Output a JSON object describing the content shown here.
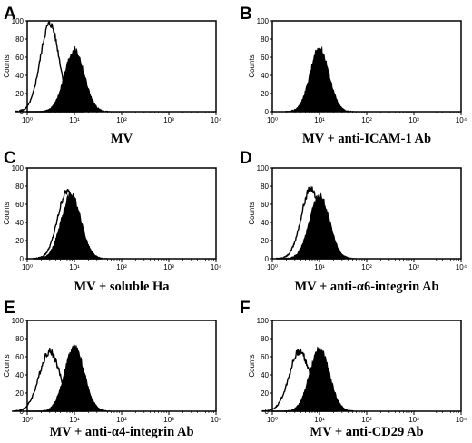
{
  "chart_data": [
    {
      "type": "area",
      "panel": "A",
      "caption": "MV",
      "ylabel": "Counts",
      "x_scale": "log",
      "xlim": [
        1,
        10000
      ],
      "ylim": [
        0,
        100
      ],
      "yticks": [
        "0",
        "20",
        "40",
        "60",
        "80",
        "100"
      ],
      "xticks": [
        "10⁰",
        "10¹",
        "10²",
        "10³",
        "10⁴"
      ],
      "series": [
        {
          "style": "open-outline",
          "peak_x": 3,
          "peak_y": 97,
          "width_decades": 0.2
        },
        {
          "style": "filled-black",
          "peak_x": 10,
          "peak_y": 68,
          "width_decades": 0.21
        }
      ]
    },
    {
      "type": "area",
      "panel": "B",
      "caption": "MV + anti-ICAM-1 Ab",
      "ylabel": "Counts",
      "x_scale": "log",
      "xlim": [
        1,
        10000
      ],
      "ylim": [
        0,
        100
      ],
      "yticks": [
        "0",
        "20",
        "40",
        "60",
        "80",
        "100"
      ],
      "xticks": [
        "10⁰",
        "10¹",
        "10²",
        "10³",
        "10⁴"
      ],
      "series": [
        {
          "style": "filled-black",
          "peak_x": 10,
          "peak_y": 70,
          "width_decades": 0.2
        }
      ]
    },
    {
      "type": "area",
      "panel": "C",
      "caption": "MV + soluble Ha",
      "ylabel": "Counts",
      "x_scale": "log",
      "xlim": [
        1,
        10000
      ],
      "ylim": [
        0,
        100
      ],
      "yticks": [
        "0",
        "20",
        "40",
        "60",
        "80",
        "100"
      ],
      "xticks": [
        "10⁰",
        "10¹",
        "10²",
        "10³",
        "10⁴"
      ],
      "series": [
        {
          "style": "open-outline",
          "peak_x": 7,
          "peak_y": 74,
          "width_decades": 0.2
        },
        {
          "style": "filled-black",
          "peak_x": 8.5,
          "peak_y": 70,
          "width_decades": 0.21
        }
      ]
    },
    {
      "type": "area",
      "panel": "D",
      "caption": "MV + anti-α6-integrin Ab",
      "ylabel": "Counts",
      "x_scale": "log",
      "xlim": [
        1,
        10000
      ],
      "ylim": [
        0,
        100
      ],
      "yticks": [
        "0",
        "20",
        "40",
        "60",
        "80",
        "100"
      ],
      "xticks": [
        "10⁰",
        "10¹",
        "10²",
        "10³",
        "10⁴"
      ],
      "series": [
        {
          "style": "open-outline",
          "peak_x": 6.5,
          "peak_y": 77,
          "width_decades": 0.2
        },
        {
          "style": "filled-black",
          "peak_x": 10,
          "peak_y": 70,
          "width_decades": 0.21
        }
      ]
    },
    {
      "type": "area",
      "panel": "E",
      "caption": "MV + anti-α4-integrin Ab",
      "ylabel": "Counts",
      "x_scale": "log",
      "xlim": [
        1,
        10000
      ],
      "ylim": [
        0,
        100
      ],
      "yticks": [
        "0",
        "20",
        "40",
        "60",
        "80",
        "100"
      ],
      "xticks": [
        "10⁰",
        "10¹",
        "10²",
        "10³",
        "10⁴"
      ],
      "series": [
        {
          "style": "open-outline",
          "peak_x": 3,
          "peak_y": 66,
          "width_decades": 0.22
        },
        {
          "style": "filled-black",
          "peak_x": 10,
          "peak_y": 70,
          "width_decades": 0.21
        }
      ]
    },
    {
      "type": "area",
      "panel": "F",
      "caption": "MV + anti-CD29 Ab",
      "ylabel": "Counts",
      "x_scale": "log",
      "xlim": [
        1,
        10000
      ],
      "ylim": [
        0,
        100
      ],
      "yticks": [
        "0",
        "20",
        "40",
        "60",
        "80",
        "100"
      ],
      "xticks": [
        "10⁰",
        "10¹",
        "10²",
        "10³",
        "10⁴"
      ],
      "series": [
        {
          "style": "open-outline",
          "peak_x": 3.8,
          "peak_y": 66,
          "width_decades": 0.22
        },
        {
          "style": "filled-black",
          "peak_x": 10,
          "peak_y": 69,
          "width_decades": 0.21
        }
      ]
    }
  ]
}
